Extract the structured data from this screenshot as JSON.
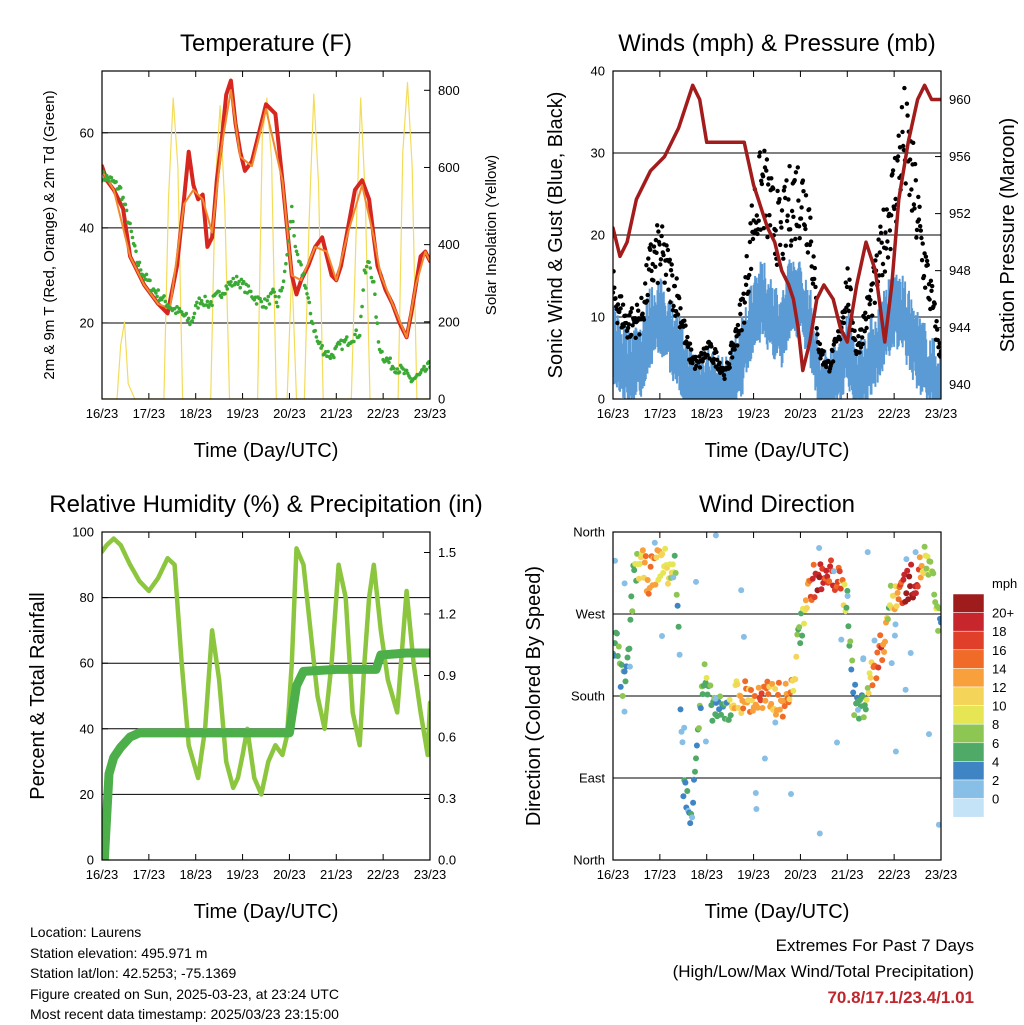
{
  "chart_data": [
    {
      "type": "line",
      "title": "Temperature (F)",
      "xlabel": "Time (Day/UTC)",
      "ylabel": "2m & 9m T (Red, Orange) & 2m Td (Green)",
      "ylabel_right": "Solar Insolation (Yellow)",
      "x_ticks": [
        "16/23",
        "17/23",
        "18/23",
        "19/23",
        "20/23",
        "21/23",
        "22/23",
        "23/23"
      ],
      "x_range": [
        0,
        7
      ],
      "ylim": [
        4,
        73
      ],
      "y_ticks": [
        20,
        40,
        60
      ],
      "ylim_right": [
        0,
        850
      ],
      "y_ticks_right": [
        0,
        200,
        400,
        600,
        800
      ],
      "grid": true,
      "colors": {
        "t2m": "#d6261f",
        "t9m": "#f08a2e",
        "td": "#3aaa35",
        "solar": "#f3dc5a"
      },
      "series": [
        {
          "name": "2m T",
          "axis": "left",
          "x": [
            0,
            0.1,
            0.25,
            0.45,
            0.6,
            0.9,
            1.2,
            1.4,
            1.6,
            1.75,
            1.85,
            1.95,
            2.05,
            2.15,
            2.25,
            2.35,
            2.45,
            2.55,
            2.65,
            2.75,
            2.85,
            2.95,
            3.05,
            3.2,
            3.35,
            3.5,
            3.7,
            3.85,
            3.95,
            4.05,
            4.15,
            4.25,
            4.4,
            4.55,
            4.7,
            4.8,
            4.9,
            5.0,
            5.1,
            5.25,
            5.4,
            5.55,
            5.7,
            5.8,
            5.88,
            5.95,
            6.05,
            6.2,
            6.35,
            6.5,
            6.6,
            6.7,
            6.8,
            6.9,
            7.0
          ],
          "y": [
            53,
            50,
            48,
            44,
            34,
            28,
            24,
            22,
            32,
            46,
            56,
            49,
            46,
            47,
            36,
            38,
            50,
            58,
            68,
            71,
            62,
            56,
            52,
            54,
            60,
            66,
            64,
            50,
            40,
            30,
            26,
            29,
            32,
            36,
            38,
            34,
            30,
            29,
            32,
            40,
            48,
            50,
            46,
            38,
            32,
            30,
            27,
            24,
            20,
            17,
            22,
            28,
            34,
            35,
            33
          ]
        },
        {
          "name": "9m T",
          "axis": "left",
          "x": [
            0,
            0.25,
            0.6,
            0.9,
            1.2,
            1.45,
            1.75,
            1.95,
            2.15,
            2.35,
            2.55,
            2.75,
            2.95,
            3.2,
            3.5,
            3.85,
            4.05,
            4.25,
            4.55,
            4.8,
            5.0,
            5.25,
            5.55,
            5.8,
            5.95,
            6.2,
            6.5,
            6.7,
            6.9,
            7.0
          ],
          "y": [
            52,
            48,
            34,
            28,
            24,
            23,
            45,
            48,
            46,
            39,
            57,
            69,
            55,
            53,
            65,
            50,
            30,
            29,
            36,
            35,
            29,
            39,
            49,
            38,
            30,
            24,
            17,
            28,
            35,
            33
          ]
        },
        {
          "name": "2m Td",
          "axis": "left",
          "x": [
            0,
            0.2,
            0.4,
            0.6,
            0.75,
            0.9,
            1.1,
            1.3,
            1.5,
            1.7,
            1.8,
            1.9,
            2.0,
            2.1,
            2.3,
            2.5,
            2.7,
            2.9,
            3.1,
            3.3,
            3.5,
            3.65,
            3.75,
            3.9,
            4.05,
            4.15,
            4.3,
            4.45,
            4.6,
            4.75,
            4.9,
            5.05,
            5.2,
            5.35,
            5.5,
            5.6,
            5.7,
            5.8,
            5.9,
            6.0,
            6.2,
            6.4,
            6.6,
            6.8,
            7.0
          ],
          "y": [
            51,
            50,
            48,
            40,
            33,
            30,
            27,
            25,
            23,
            22,
            21,
            20,
            23,
            25,
            24,
            26,
            28,
            29,
            27,
            25,
            24,
            26,
            24,
            30,
            44,
            34,
            30,
            22,
            16,
            14,
            13,
            15,
            16,
            17,
            18,
            30,
            33,
            28,
            16,
            13,
            11,
            10,
            8,
            9,
            11
          ]
        },
        {
          "name": "Solar Insolation",
          "axis": "right",
          "x": [
            0,
            0.32,
            0.4,
            0.48,
            0.56,
            0.7,
            1.32,
            1.42,
            1.52,
            1.62,
            1.72,
            2.32,
            2.42,
            2.52,
            2.62,
            2.72,
            3.32,
            3.42,
            3.52,
            3.62,
            3.72,
            3.95,
            4.05,
            4.15,
            4.32,
            4.42,
            4.52,
            4.62,
            4.72,
            5.32,
            5.42,
            5.52,
            5.62,
            5.72,
            6.32,
            6.42,
            6.52,
            6.62,
            6.72,
            7.0
          ],
          "y": [
            0,
            0,
            140,
            200,
            40,
            0,
            0,
            520,
            780,
            600,
            0,
            0,
            560,
            760,
            500,
            0,
            0,
            680,
            780,
            620,
            0,
            0,
            340,
            0,
            0,
            460,
            790,
            560,
            0,
            0,
            420,
            780,
            520,
            0,
            0,
            640,
            820,
            600,
            0,
            0
          ]
        }
      ]
    },
    {
      "type": "scatter",
      "title": "Winds (mph) & Pressure (mb)",
      "xlabel": "Time (Day/UTC)",
      "ylabel": "Sonic Wind & Gust (Blue, Black)",
      "ylabel_right": "Station Pressure (Maroon)",
      "x_ticks": [
        "16/23",
        "17/23",
        "18/23",
        "19/23",
        "20/23",
        "21/23",
        "22/23",
        "23/23"
      ],
      "x_range": [
        0,
        7
      ],
      "ylim": [
        0,
        40
      ],
      "y_ticks": [
        0,
        10,
        20,
        30,
        40
      ],
      "ylim_right": [
        939,
        962
      ],
      "y_ticks_right": [
        940,
        944,
        948,
        952,
        956,
        960
      ],
      "grid": true,
      "colors": {
        "wind": "#5b9bd5",
        "gust": "#000000",
        "pressure": "#a31c1c"
      },
      "series": [
        {
          "name": "Sonic Wind",
          "axis": "left",
          "x": [
            0,
            0.3,
            0.6,
            0.8,
            1.0,
            1.2,
            1.4,
            1.6,
            1.8,
            2.0,
            2.2,
            2.4,
            2.6,
            2.8,
            3.0,
            3.2,
            3.4,
            3.6,
            3.8,
            4.0,
            4.2,
            4.4,
            4.6,
            4.8,
            5.0,
            5.2,
            5.4,
            5.6,
            5.8,
            6.0,
            6.2,
            6.4,
            6.6,
            6.8,
            7.0
          ],
          "y": [
            8,
            5,
            6,
            10,
            11,
            9,
            7,
            3,
            2,
            3,
            2,
            1,
            4,
            7,
            12,
            13,
            11,
            9,
            14,
            13,
            10,
            3,
            2,
            4,
            8,
            3,
            5,
            7,
            10,
            12,
            11,
            8,
            6,
            4,
            2
          ]
        },
        {
          "name": "Gust",
          "axis": "left",
          "x": [
            0,
            0.3,
            0.6,
            0.8,
            1.0,
            1.2,
            1.4,
            1.6,
            1.8,
            2.0,
            2.2,
            2.4,
            2.6,
            2.8,
            3.0,
            3.2,
            3.4,
            3.6,
            3.8,
            4.0,
            4.2,
            4.4,
            4.6,
            4.8,
            5.0,
            5.2,
            5.4,
            5.6,
            5.8,
            6.0,
            6.2,
            6.4,
            6.6,
            6.8,
            7.0
          ],
          "y": [
            13,
            9,
            10,
            16,
            18,
            15,
            12,
            6,
            4,
            6,
            5,
            3,
            7,
            12,
            22,
            26,
            22,
            20,
            24,
            25,
            22,
            6,
            4,
            7,
            14,
            6,
            10,
            14,
            20,
            25,
            32,
            26,
            18,
            12,
            5
          ]
        },
        {
          "name": "Station Pressure",
          "axis": "right",
          "x": [
            0,
            0.15,
            0.3,
            0.5,
            0.8,
            1.1,
            1.4,
            1.7,
            1.85,
            2.0,
            2.2,
            2.5,
            2.8,
            3.0,
            3.1,
            3.2,
            3.3,
            3.45,
            3.6,
            3.75,
            3.85,
            3.95,
            4.05,
            4.2,
            4.35,
            4.5,
            4.7,
            4.85,
            5.0,
            5.2,
            5.4,
            5.6,
            5.8,
            5.95,
            6.1,
            6.3,
            6.5,
            6.65,
            6.8,
            7.0
          ],
          "y": [
            951,
            949,
            950,
            953,
            955,
            956,
            958,
            961,
            960,
            957,
            957,
            957,
            957,
            954,
            953,
            952,
            951,
            950,
            948,
            947,
            946,
            944,
            941,
            943,
            946,
            947,
            946,
            944,
            943,
            947,
            950,
            948,
            943,
            947,
            953,
            957,
            960,
            961,
            960,
            960
          ]
        }
      ]
    },
    {
      "type": "line",
      "title": "Relative Humidity (%) & Precipitation (in)",
      "xlabel": "Time (Day/UTC)",
      "ylabel": "Percent & Total Rainfall",
      "x_ticks": [
        "16/23",
        "17/23",
        "18/23",
        "19/23",
        "20/23",
        "21/23",
        "22/23",
        "23/23"
      ],
      "x_range": [
        0,
        7
      ],
      "ylim": [
        0,
        100
      ],
      "y_ticks": [
        0,
        20,
        40,
        60,
        80,
        100
      ],
      "ylim_right": [
        0,
        1.6
      ],
      "y_ticks_right": [
        "0.0",
        "0.3",
        "0.6",
        "0.9",
        "1.2",
        "1.5"
      ],
      "grid": true,
      "colors": {
        "rh": "#8cc63f",
        "precip": "#4daf4a"
      },
      "series": [
        {
          "name": "Relative Humidity",
          "axis": "left",
          "x": [
            0,
            0.1,
            0.25,
            0.4,
            0.6,
            0.8,
            1.0,
            1.2,
            1.4,
            1.55,
            1.7,
            1.85,
            1.95,
            2.05,
            2.2,
            2.35,
            2.5,
            2.65,
            2.8,
            2.9,
            3.0,
            3.1,
            3.25,
            3.4,
            3.55,
            3.7,
            3.85,
            3.95,
            4.05,
            4.15,
            4.3,
            4.45,
            4.6,
            4.75,
            4.9,
            5.05,
            5.2,
            5.35,
            5.5,
            5.6,
            5.7,
            5.8,
            5.95,
            6.1,
            6.3,
            6.5,
            6.65,
            6.8,
            6.95,
            7.0
          ],
          "y": [
            94,
            96,
            98,
            96,
            90,
            85,
            82,
            86,
            92,
            90,
            60,
            35,
            30,
            25,
            40,
            70,
            55,
            30,
            22,
            25,
            32,
            40,
            25,
            20,
            30,
            35,
            32,
            38,
            60,
            95,
            90,
            70,
            50,
            40,
            60,
            90,
            80,
            45,
            35,
            60,
            80,
            90,
            70,
            55,
            45,
            82,
            60,
            45,
            32,
            48
          ]
        },
        {
          "name": "Total Precipitation",
          "axis": "right",
          "x": [
            0,
            0.05,
            0.15,
            0.25,
            0.4,
            0.6,
            0.8,
            1.0,
            2.0,
            3.0,
            3.9,
            4.0,
            4.05,
            4.15,
            4.3,
            5.0,
            5.7,
            5.85,
            5.95,
            6.5,
            7.0
          ],
          "y": [
            0,
            0,
            0.42,
            0.5,
            0.55,
            0.6,
            0.62,
            0.62,
            0.62,
            0.62,
            0.62,
            0.62,
            0.7,
            0.85,
            0.92,
            0.93,
            0.93,
            0.93,
            1.0,
            1.01,
            1.01
          ]
        }
      ]
    },
    {
      "type": "scatter",
      "title": "Wind Direction",
      "xlabel": "Time (Day/UTC)",
      "ylabel": "Direction (Colored By Speed)",
      "x_ticks": [
        "16/23",
        "17/23",
        "18/23",
        "19/23",
        "20/23",
        "21/23",
        "22/23",
        "23/23"
      ],
      "x_range": [
        0,
        7
      ],
      "y_ticks": [
        "North",
        "East",
        "South",
        "West",
        "North"
      ],
      "ylim": [
        0,
        360
      ],
      "grid": true,
      "legend": {
        "title": "mph",
        "position": "right",
        "labels": [
          "20+",
          "18",
          "16",
          "14",
          "12",
          "10",
          "8",
          "6",
          "4",
          "2",
          "0"
        ],
        "colors": [
          "#9e1c1c",
          "#c7262c",
          "#e0402a",
          "#f06a28",
          "#f8a03c",
          "#f4d55a",
          "#e6e655",
          "#8dc653",
          "#4faa67",
          "#3f85c4",
          "#88bfe6",
          "#c5e3f6"
        ]
      },
      "series": [
        {
          "name": "Direction",
          "x": [
            0.05,
            0.1,
            0.2,
            0.3,
            0.45,
            0.6,
            0.75,
            0.9,
            1.05,
            1.2,
            1.35,
            1.5,
            1.65,
            1.8,
            1.95,
            2.05,
            2.15,
            2.3,
            2.45,
            2.6,
            2.8,
            3.0,
            3.2,
            3.4,
            3.6,
            3.8,
            4.0,
            4.1,
            4.25,
            4.4,
            4.55,
            4.7,
            4.85,
            5.0,
            5.15,
            5.3,
            5.45,
            5.6,
            5.75,
            5.9,
            6.05,
            6.2,
            6.35,
            6.5,
            6.65,
            6.8,
            6.95
          ],
          "y": [
            240,
            230,
            190,
            200,
            320,
            325,
            310,
            320,
            330,
            315,
            320,
            90,
            40,
            140,
            200,
            175,
            170,
            160,
            165,
            180,
            180,
            175,
            175,
            180,
            175,
            180,
            255,
            280,
            305,
            310,
            305,
            315,
            300,
            285,
            175,
            165,
            190,
            215,
            235,
            280,
            295,
            300,
            305,
            310,
            330,
            310,
            260
          ],
          "speed": [
            3,
            3,
            4,
            3,
            6,
            10,
            12,
            11,
            9,
            10,
            4,
            2,
            2,
            3,
            6,
            4,
            4,
            3,
            4,
            10,
            12,
            12,
            14,
            12,
            14,
            12,
            5,
            10,
            16,
            18,
            16,
            17,
            14,
            5,
            4,
            4,
            8,
            14,
            16,
            5,
            12,
            18,
            20,
            16,
            8,
            6,
            4
          ]
        }
      ]
    }
  ],
  "footer": {
    "location": "Location: Laurens",
    "elevation": "Station elevation: 495.971 m",
    "latlon": "Station lat/lon: 42.5253; -75.1369",
    "created": "Figure created on Sun, 2025-03-23, at 23:24 UTC",
    "recent": "Most recent data timestamp: 2025/03/23 23:15:00"
  },
  "extremes": {
    "title": "Extremes For Past 7 Days",
    "subtitle": "(High/Low/Max Wind/Total Precipitation)",
    "values": "70.8/17.1/23.4/1.01"
  }
}
